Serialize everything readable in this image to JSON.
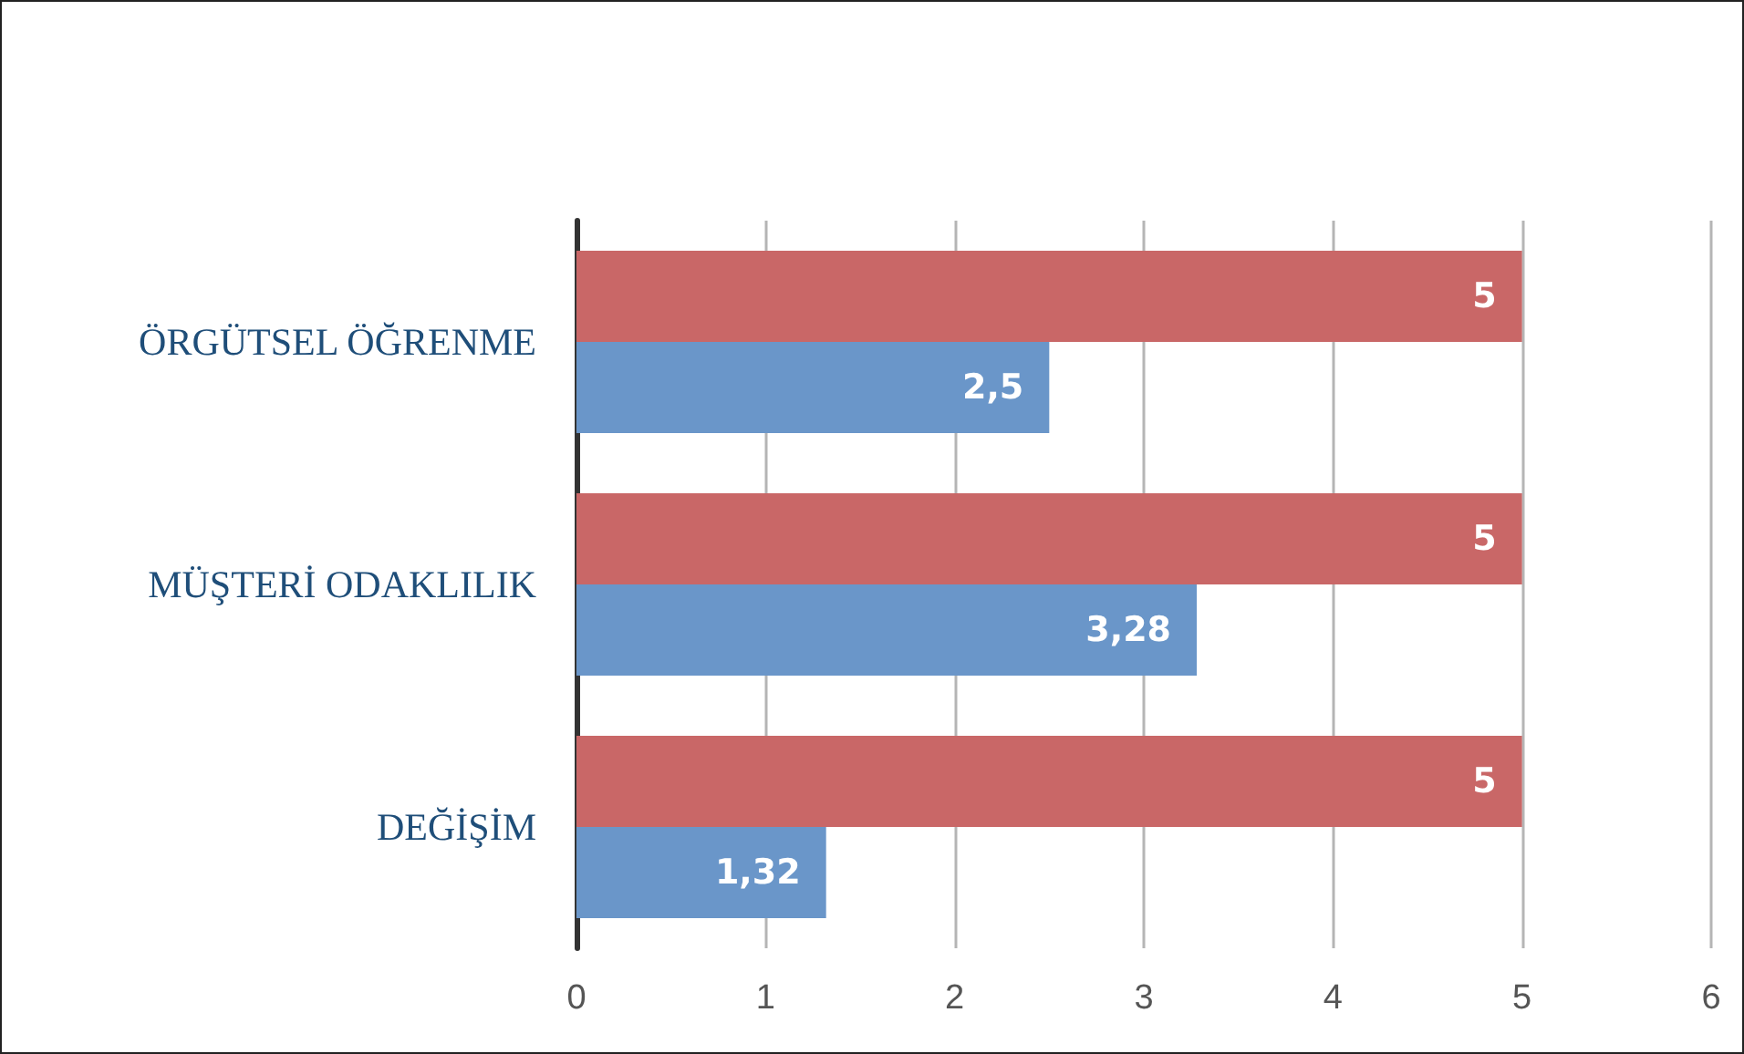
{
  "chart_data": {
    "type": "bar",
    "orientation": "horizontal",
    "categories": [
      "ÖRGÜTSEL ÖĞRENME",
      "MÜŞTERİ ODAKLILIK",
      "DEĞİŞİM"
    ],
    "series": [
      {
        "color": "#c96767",
        "values": [
          5,
          5,
          5
        ],
        "value_labels": [
          "5",
          "5",
          "5"
        ]
      },
      {
        "color": "#6a96c9",
        "values": [
          2.5,
          3.28,
          1.32
        ],
        "value_labels": [
          "2,5",
          "3,28",
          "1,32"
        ]
      }
    ],
    "xlim": [
      0,
      6
    ],
    "xticks": [
      0,
      1,
      2,
      3,
      4,
      5,
      6
    ],
    "grid": "x"
  }
}
